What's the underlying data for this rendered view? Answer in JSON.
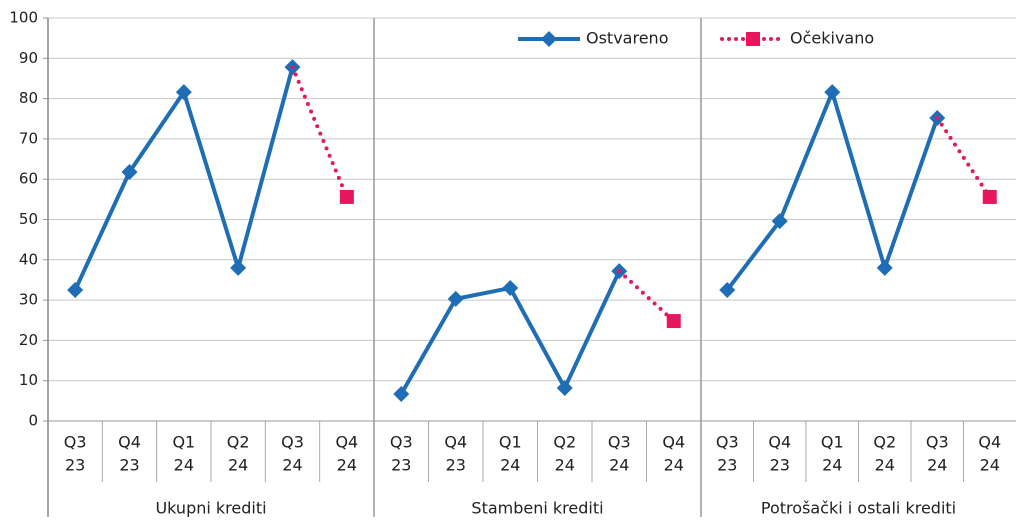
{
  "chart_data": [
    {
      "type": "line",
      "title": "Ukupni krediti",
      "categories": [
        [
          "Q3",
          "23"
        ],
        [
          "Q4",
          "23"
        ],
        [
          "Q1",
          "24"
        ],
        [
          "Q2",
          "24"
        ],
        [
          "Q3",
          "24"
        ],
        [
          "Q4",
          "24"
        ]
      ],
      "series": [
        {
          "name": "Ostvareno",
          "color": "#1f6db5",
          "values": [
            32.5,
            61.8,
            81.6,
            38,
            87.8,
            null
          ]
        },
        {
          "name": "Očekivano",
          "color": "#e8175d",
          "values": [
            null,
            null,
            null,
            null,
            null,
            55.6
          ]
        }
      ],
      "ylim": [
        0,
        100
      ],
      "yticks": [
        0,
        10,
        20,
        30,
        40,
        50,
        60,
        70,
        80,
        90,
        100
      ],
      "grid": true
    },
    {
      "type": "line",
      "title": "Stambeni krediti",
      "categories": [
        [
          "Q3",
          "23"
        ],
        [
          "Q4",
          "23"
        ],
        [
          "Q1",
          "24"
        ],
        [
          "Q2",
          "24"
        ],
        [
          "Q3",
          "24"
        ],
        [
          "Q4",
          "24"
        ]
      ],
      "series": [
        {
          "name": "Ostvareno",
          "color": "#1f6db5",
          "values": [
            6.7,
            30.3,
            33,
            8.2,
            37.2,
            null
          ]
        },
        {
          "name": "Očekivano",
          "color": "#e8175d",
          "values": [
            null,
            null,
            null,
            null,
            null,
            24.8
          ]
        }
      ],
      "ylim": [
        0,
        100
      ],
      "legend": "top"
    },
    {
      "type": "line",
      "title": "Potrošački i ostali krediti",
      "categories": [
        [
          "Q3",
          "23"
        ],
        [
          "Q4",
          "23"
        ],
        [
          "Q1",
          "24"
        ],
        [
          "Q2",
          "24"
        ],
        [
          "Q3",
          "24"
        ],
        [
          "Q4",
          "24"
        ]
      ],
      "series": [
        {
          "name": "Ostvareno",
          "color": "#1f6db5",
          "values": [
            32.5,
            49.6,
            81.6,
            38,
            75.2,
            null
          ]
        },
        {
          "name": "Očekivano",
          "color": "#e8175d",
          "values": [
            null,
            null,
            null,
            null,
            null,
            55.6
          ]
        }
      ],
      "ylim": [
        0,
        100
      ]
    }
  ]
}
